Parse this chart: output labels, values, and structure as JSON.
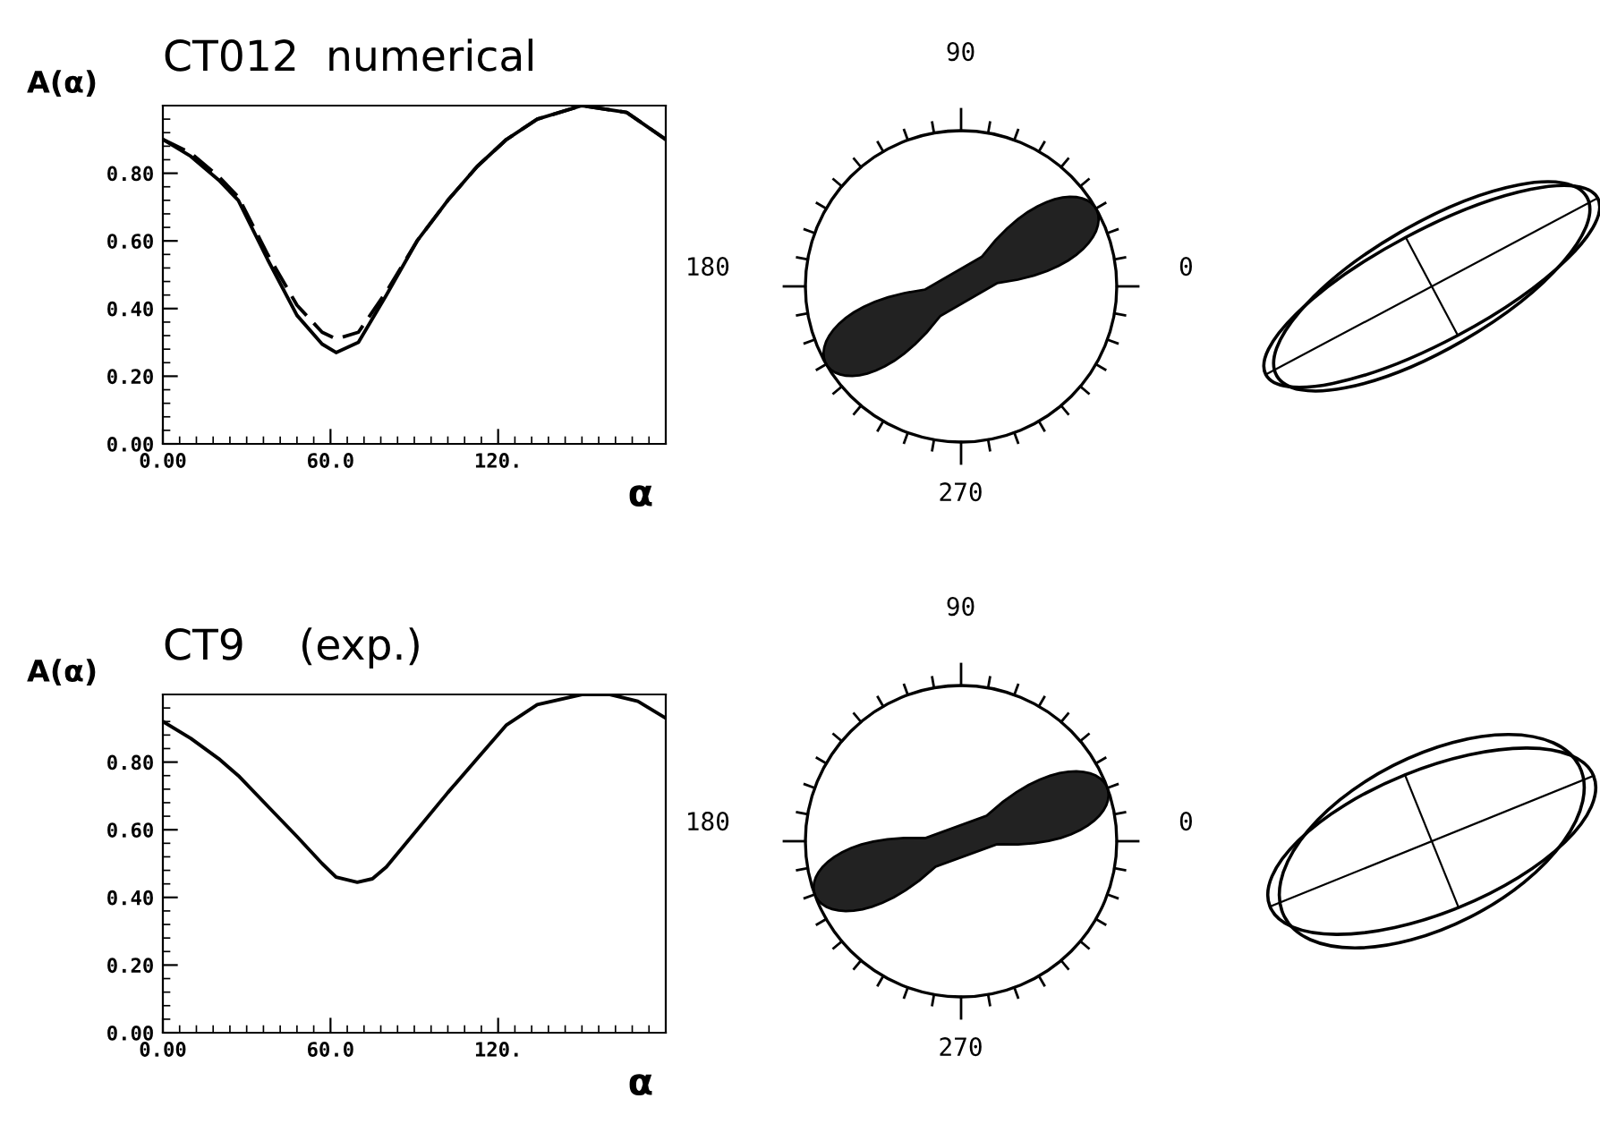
{
  "chart_data": [
    {
      "type": "line",
      "title": "CT012  numerical",
      "ylabel": "A(α)",
      "xlabel": "α",
      "xlim": [
        0,
        180
      ],
      "ylim": [
        0,
        1.0
      ],
      "xticks": [
        {
          "value": 0,
          "label": "0.00"
        },
        {
          "value": 60,
          "label": "60.0"
        },
        {
          "value": 120,
          "label": "120."
        }
      ],
      "yticks": [
        {
          "value": 0,
          "label": "0.00"
        },
        {
          "value": 0.2,
          "label": "0.20"
        },
        {
          "value": 0.4,
          "label": "0.40"
        },
        {
          "value": 0.6,
          "label": "0.60"
        },
        {
          "value": 0.8,
          "label": "0.80"
        }
      ],
      "grid": false,
      "legend": false,
      "series": [
        {
          "color": "#000000",
          "line_style": "solid",
          "x": [
            0,
            10,
            20,
            27,
            37.5,
            48,
            57,
            62,
            70,
            80,
            91,
            102,
            112.5,
            123,
            134,
            150,
            166,
            180
          ],
          "values": [
            0.9,
            0.85,
            0.78,
            0.72,
            0.545,
            0.38,
            0.295,
            0.27,
            0.3,
            0.44,
            0.6,
            0.72,
            0.82,
            0.9,
            0.96,
            1.0,
            0.98,
            0.9
          ]
        },
        {
          "color": "#000000",
          "line_style": "dashed",
          "x": [
            0,
            10,
            20,
            27,
            37.5,
            48,
            57,
            62,
            70,
            80,
            91,
            102,
            112.5,
            123,
            134,
            150,
            166,
            180
          ],
          "values": [
            0.9,
            0.86,
            0.79,
            0.73,
            0.56,
            0.41,
            0.33,
            0.31,
            0.33,
            0.45,
            0.6,
            0.72,
            0.82,
            0.9,
            0.96,
            1.0,
            0.98,
            0.9
          ]
        }
      ]
    },
    {
      "type": "other",
      "annotations": [
        "90",
        "180",
        "0",
        "270"
      ]
    },
    {
      "type": "line",
      "title": "CT9    (exp.)",
      "ylabel": "A(α)",
      "xlabel": "α",
      "xlim": [
        0,
        180
      ],
      "ylim": [
        0,
        1.0
      ],
      "xticks": [
        {
          "value": 0,
          "label": "0.00"
        },
        {
          "value": 60,
          "label": "60.0"
        },
        {
          "value": 120,
          "label": "120."
        }
      ],
      "yticks": [
        {
          "value": 0,
          "label": "0.00"
        },
        {
          "value": 0.2,
          "label": "0.20"
        },
        {
          "value": 0.4,
          "label": "0.40"
        },
        {
          "value": 0.6,
          "label": "0.60"
        },
        {
          "value": 0.8,
          "label": "0.80"
        }
      ],
      "grid": false,
      "legend": false,
      "series": [
        {
          "color": "#000000",
          "line_style": "solid",
          "x": [
            0,
            10,
            20,
            27,
            37.5,
            48,
            57,
            62,
            69.6,
            75,
            80,
            91,
            102,
            112.5,
            123,
            134,
            150,
            160,
            170,
            180
          ],
          "values": [
            0.92,
            0.87,
            0.81,
            0.76,
            0.67,
            0.58,
            0.5,
            0.46,
            0.445,
            0.455,
            0.49,
            0.6,
            0.71,
            0.81,
            0.91,
            0.97,
            1.0,
            1.0,
            0.98,
            0.93
          ]
        }
      ]
    },
    {
      "type": "other",
      "annotations": [
        "90",
        "180",
        "0",
        "270"
      ]
    }
  ]
}
